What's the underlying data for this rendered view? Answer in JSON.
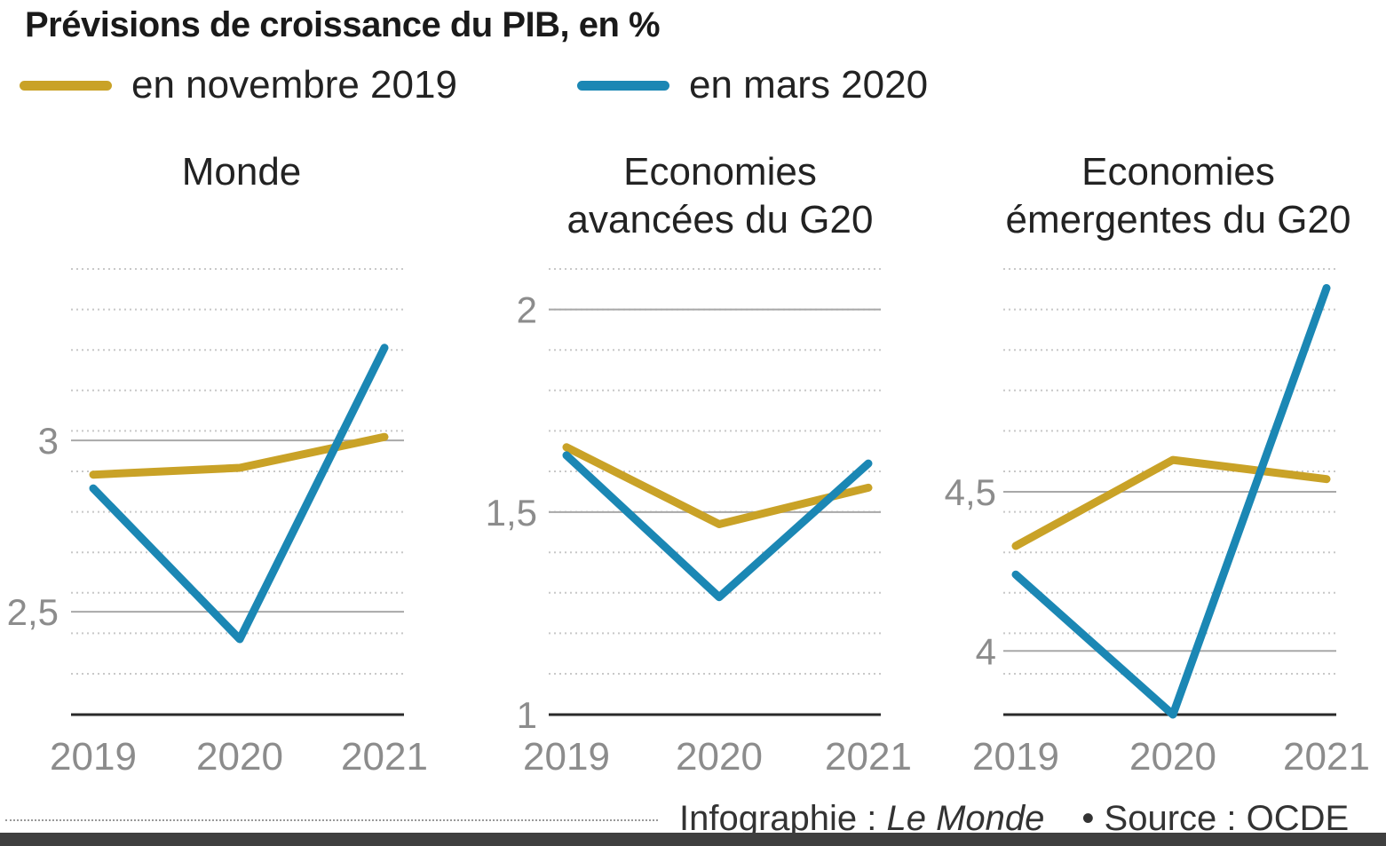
{
  "title": "Prévisions de croissance du PIB, en %",
  "legend": [
    {
      "label": "en novembre 2019",
      "color": "#c9a227"
    },
    {
      "label": "en mars 2020",
      "color": "#1b87b4"
    }
  ],
  "footer": {
    "credit_prefix": "Infographie : ",
    "credit_name": "Le Monde",
    "source": "• Source : OCDE"
  },
  "chart_data": [
    {
      "type": "line",
      "title_lines": [
        "Monde"
      ],
      "x": [
        "2019",
        "2020",
        "2021"
      ],
      "ylim": [
        2.2,
        3.5
      ],
      "yticks": [
        2.5,
        3
      ],
      "ytick_labels": [
        "2,5",
        "3"
      ],
      "series": [
        {
          "name": "en novembre 2019",
          "color": "#c9a227",
          "values": [
            2.9,
            2.92,
            3.01
          ]
        },
        {
          "name": "en mars 2020",
          "color": "#1b87b4",
          "values": [
            2.86,
            2.42,
            3.27
          ]
        }
      ]
    },
    {
      "type": "line",
      "title_lines": [
        "Economies",
        "avancées du G20"
      ],
      "x": [
        "2019",
        "2020",
        "2021"
      ],
      "ylim": [
        1.0,
        2.1
      ],
      "yticks": [
        1,
        1.5,
        2
      ],
      "ytick_labels": [
        "1",
        "1,5",
        "2"
      ],
      "series": [
        {
          "name": "en novembre 2019",
          "color": "#c9a227",
          "values": [
            1.66,
            1.47,
            1.56
          ]
        },
        {
          "name": "en mars 2020",
          "color": "#1b87b4",
          "values": [
            1.64,
            1.29,
            1.62
          ]
        }
      ]
    },
    {
      "type": "line",
      "title_lines": [
        "Economies",
        "émergentes du G20"
      ],
      "x": [
        "2019",
        "2020",
        "2021"
      ],
      "ylim": [
        3.8,
        5.2
      ],
      "yticks": [
        4,
        4.5
      ],
      "ytick_labels": [
        "4",
        "4,5"
      ],
      "series": [
        {
          "name": "en novembre 2019",
          "color": "#c9a227",
          "values": [
            4.33,
            4.6,
            4.54
          ]
        },
        {
          "name": "en mars 2020",
          "color": "#1b87b4",
          "values": [
            4.24,
            3.8,
            5.14
          ]
        }
      ]
    }
  ]
}
